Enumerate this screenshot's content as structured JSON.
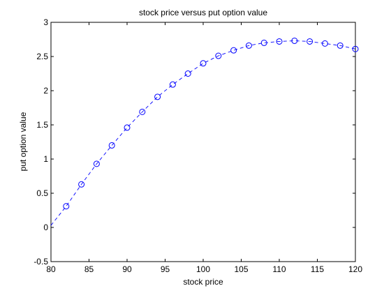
{
  "chart_data": {
    "type": "line",
    "title": "stock price versus put option value",
    "xlabel": "stock price",
    "ylabel": "put option value",
    "xlim": [
      80,
      120
    ],
    "ylim": [
      -0.5,
      3
    ],
    "xticks": [
      "80",
      "85",
      "90",
      "95",
      "100",
      "105",
      "110",
      "115",
      "120"
    ],
    "yticks": [
      "-0.5",
      "0",
      "0.5",
      "1",
      "1.5",
      "2",
      "2.5",
      "3"
    ],
    "grid": false,
    "line_style": "dashed",
    "marker": "circle",
    "color": "#0000ff",
    "series": [
      {
        "x": [
          80,
          82,
          84,
          86,
          88,
          90,
          92,
          94,
          96,
          98,
          100,
          102,
          104,
          106,
          108,
          110,
          112,
          114,
          116,
          118,
          120
        ],
        "y": [
          0.03,
          0.31,
          0.63,
          0.93,
          1.2,
          1.46,
          1.69,
          1.91,
          2.09,
          2.25,
          2.4,
          2.51,
          2.59,
          2.66,
          2.7,
          2.72,
          2.73,
          2.72,
          2.69,
          2.66,
          2.61
        ]
      }
    ]
  }
}
